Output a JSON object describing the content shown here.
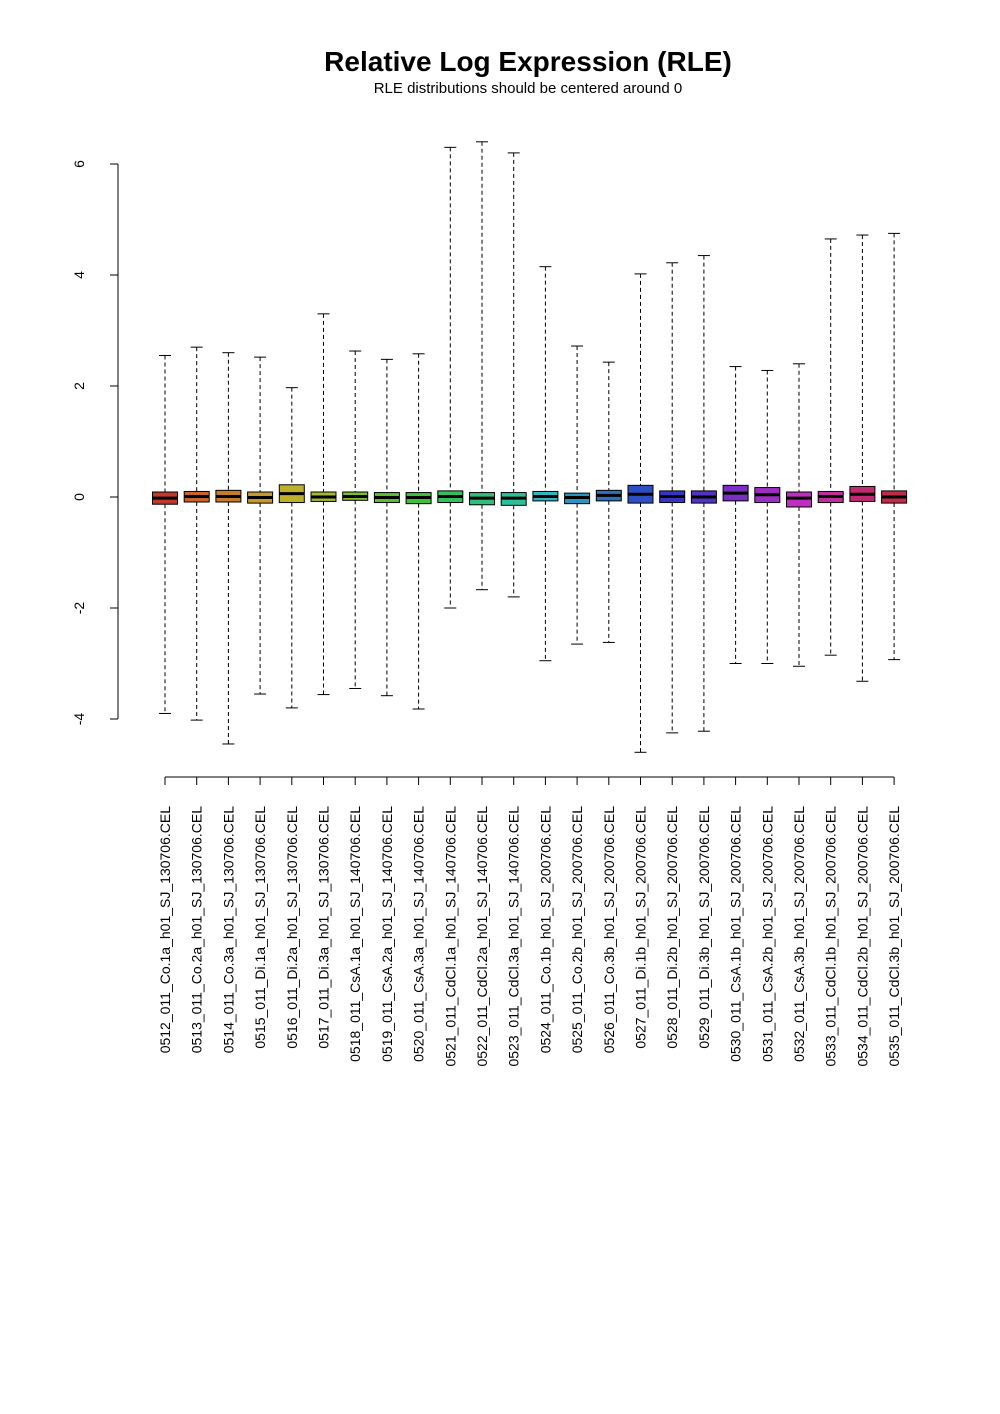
{
  "chart_data": {
    "type": "boxplot",
    "title": "Relative Log Expression (RLE)",
    "subtitle": "RLE distributions should be centered around 0",
    "xlabel": "",
    "ylabel": "",
    "ylim": [
      -5.0,
      6.5
    ],
    "yticks": [
      -4,
      -2,
      0,
      2,
      4,
      6
    ],
    "grid": false,
    "categories": [
      "0512_011_Co.1a_h01_SJ_130706.CEL",
      "0513_011_Co.2a_h01_SJ_130706.CEL",
      "0514_011_Co.3a_h01_SJ_130706.CEL",
      "0515_011_Di.1a_h01_SJ_130706.CEL",
      "0516_011_Di.2a_h01_SJ_130706.CEL",
      "0517_011_Di.3a_h01_SJ_130706.CEL",
      "0518_011_CsA.1a_h01_SJ_140706.CEL",
      "0519_011_CsA.2a_h01_SJ_140706.CEL",
      "0520_011_CsA.3a_h01_SJ_140706.CEL",
      "0521_011_CdCl.1a_h01_SJ_140706.CEL",
      "0522_011_CdCl.2a_h01_SJ_140706.CEL",
      "0523_011_CdCl.3a_h01_SJ_140706.CEL",
      "0524_011_Co.1b_h01_SJ_200706.CEL",
      "0525_011_Co.2b_h01_SJ_200706.CEL",
      "0526_011_Co.3b_h01_SJ_200706.CEL",
      "0527_011_Di.1b_h01_SJ_200706.CEL",
      "0528_011_Di.2b_h01_SJ_200706.CEL",
      "0529_011_Di.3b_h01_SJ_200706.CEL",
      "0530_011_CsA.1b_h01_SJ_200706.CEL",
      "0531_011_CsA.2b_h01_SJ_200706.CEL",
      "0532_011_CsA.3b_h01_SJ_200706.CEL",
      "0533_011_CdCl.1b_h01_SJ_200706.CEL",
      "0534_011_CdCl.2b_h01_SJ_200706.CEL",
      "0535_011_CdCl.3b_h01_SJ_200706.CEL"
    ],
    "boxes": [
      {
        "min": -3.9,
        "q1": -0.13,
        "median": -0.02,
        "q3": 0.09,
        "max": 2.55,
        "color": "#c0392b"
      },
      {
        "min": -4.02,
        "q1": -0.09,
        "median": 0.01,
        "q3": 0.1,
        "max": 2.7,
        "color": "#c8632c"
      },
      {
        "min": -4.45,
        "q1": -0.09,
        "median": 0.01,
        "q3": 0.12,
        "max": 2.6,
        "color": "#c47b2a"
      },
      {
        "min": -3.55,
        "q1": -0.11,
        "median": -0.01,
        "q3": 0.09,
        "max": 2.52,
        "color": "#c39a2b"
      },
      {
        "min": -3.8,
        "q1": -0.1,
        "median": 0.06,
        "q3": 0.22,
        "max": 1.97,
        "color": "#bdb02b"
      },
      {
        "min": -3.56,
        "q1": -0.08,
        "median": 0.0,
        "q3": 0.09,
        "max": 3.3,
        "color": "#a6b82c"
      },
      {
        "min": -3.45,
        "q1": -0.06,
        "median": 0.01,
        "q3": 0.09,
        "max": 2.63,
        "color": "#7fbf2e"
      },
      {
        "min": -3.58,
        "q1": -0.1,
        "median": -0.01,
        "q3": 0.08,
        "max": 2.48,
        "color": "#5cbf33"
      },
      {
        "min": -3.82,
        "q1": -0.12,
        "median": -0.01,
        "q3": 0.08,
        "max": 2.58,
        "color": "#3fc03a"
      },
      {
        "min": -2.0,
        "q1": -0.1,
        "median": 0.01,
        "q3": 0.11,
        "max": 6.3,
        "color": "#33c05a"
      },
      {
        "min": -1.67,
        "q1": -0.14,
        "median": -0.02,
        "q3": 0.08,
        "max": 6.4,
        "color": "#2fbf7b"
      },
      {
        "min": -1.8,
        "q1": -0.15,
        "median": -0.02,
        "q3": 0.08,
        "max": 6.2,
        "color": "#2bbf9c"
      },
      {
        "min": -2.95,
        "q1": -0.07,
        "median": 0.01,
        "q3": 0.1,
        "max": 4.15,
        "color": "#2db7c0"
      },
      {
        "min": -2.65,
        "q1": -0.12,
        "median": -0.01,
        "q3": 0.07,
        "max": 2.72,
        "color": "#2b95c0"
      },
      {
        "min": -2.62,
        "q1": -0.07,
        "median": 0.03,
        "q3": 0.12,
        "max": 2.43,
        "color": "#2d70c3"
      },
      {
        "min": -4.6,
        "q1": -0.11,
        "median": 0.05,
        "q3": 0.21,
        "max": 4.02,
        "color": "#2e4fc4"
      },
      {
        "min": -4.25,
        "q1": -0.1,
        "median": 0.01,
        "q3": 0.11,
        "max": 4.22,
        "color": "#3535c5"
      },
      {
        "min": -4.22,
        "q1": -0.11,
        "median": 0.0,
        "q3": 0.11,
        "max": 4.35,
        "color": "#5331c4"
      },
      {
        "min": -3.0,
        "q1": -0.07,
        "median": 0.07,
        "q3": 0.21,
        "max": 2.35,
        "color": "#7a2fc3"
      },
      {
        "min": -3.0,
        "q1": -0.1,
        "median": 0.04,
        "q3": 0.17,
        "max": 2.28,
        "color": "#9d2ec2"
      },
      {
        "min": -3.05,
        "q1": -0.18,
        "median": -0.02,
        "q3": 0.09,
        "max": 2.4,
        "color": "#bd2fbf"
      },
      {
        "min": -2.85,
        "q1": -0.1,
        "median": 0.01,
        "q3": 0.1,
        "max": 4.65,
        "color": "#c02d9c"
      },
      {
        "min": -3.32,
        "q1": -0.08,
        "median": 0.05,
        "q3": 0.19,
        "max": 4.72,
        "color": "#c02b70"
      },
      {
        "min": -2.93,
        "q1": -0.11,
        "median": 0.0,
        "q3": 0.11,
        "max": 4.75,
        "color": "#c02b46"
      }
    ]
  }
}
